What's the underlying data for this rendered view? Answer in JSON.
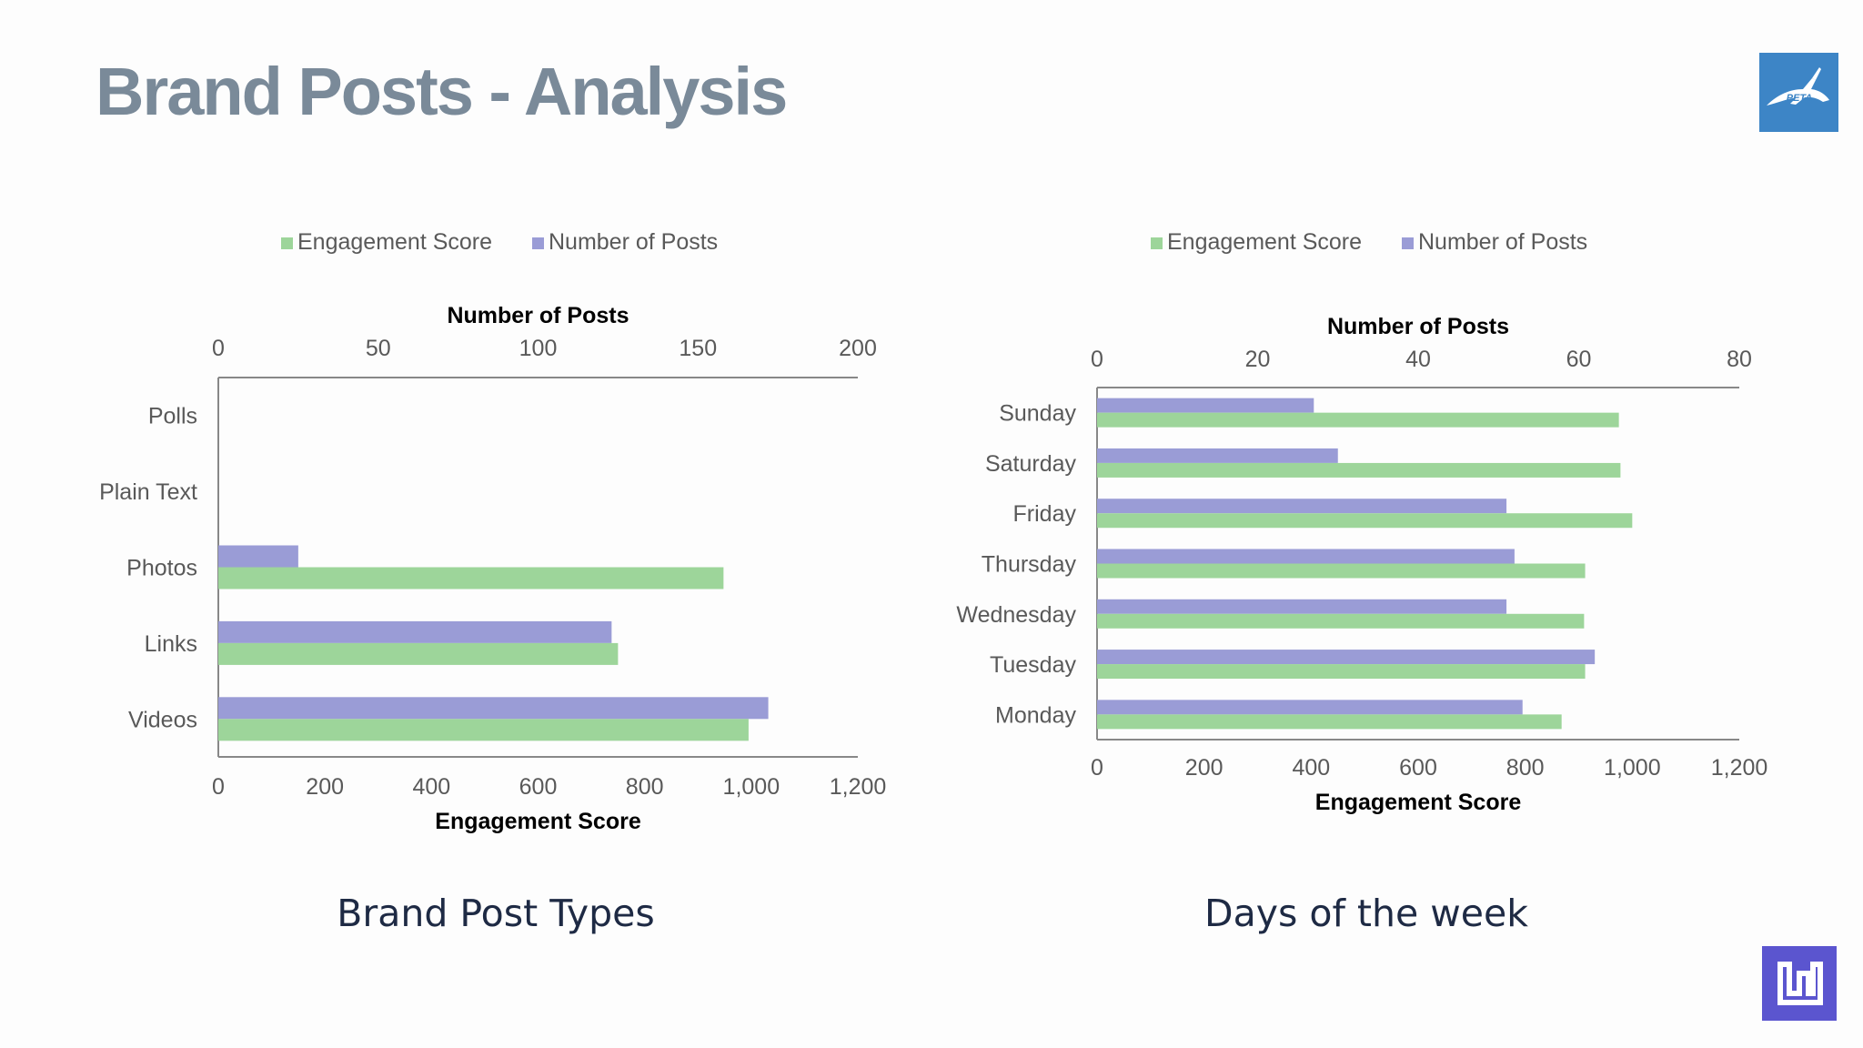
{
  "slide": {
    "title": "Brand Posts - Analysis"
  },
  "logos": {
    "top_right": {
      "icon": "peta-rabbit-logo-icon",
      "text": "PETA",
      "color": "#3d85c6"
    },
    "bottom_right": {
      "icon": "brand-logo-icon",
      "color": "#5b55cf"
    }
  },
  "colors": {
    "engagement": "#9dd59a",
    "posts": "#9a9cd6",
    "axis": "#888888",
    "tick_text": "#595959",
    "label_text": "#000000"
  },
  "chart_data": [
    {
      "type": "bar",
      "orientation": "horizontal",
      "caption": "Brand Post Types",
      "legend": [
        "Engagement Score",
        "Number of Posts"
      ],
      "legend_position": "top",
      "categories": [
        "Polls",
        "Plain Text",
        "Photos",
        "Links",
        "Videos"
      ],
      "series": [
        {
          "name": "Number of Posts",
          "axis": "top",
          "values": [
            0,
            0,
            25,
            123,
            172
          ]
        },
        {
          "name": "Engagement Score",
          "axis": "bottom",
          "values": [
            0,
            0,
            948,
            750,
            995
          ]
        }
      ],
      "top_axis": {
        "label": "Number of Posts",
        "min": 0,
        "max": 200,
        "ticks": [
          "0",
          "50",
          "100",
          "150",
          "200"
        ]
      },
      "bottom_axis": {
        "label": "Engagement Score",
        "min": 0,
        "max": 1200,
        "ticks": [
          "0",
          "200",
          "400",
          "600",
          "800",
          "1,000",
          "1,200"
        ]
      },
      "grid": false
    },
    {
      "type": "bar",
      "orientation": "horizontal",
      "caption": "Days of the week",
      "legend": [
        "Engagement Score",
        "Number of Posts"
      ],
      "legend_position": "top",
      "categories": [
        "Sunday",
        "Saturday",
        "Friday",
        "Thursday",
        "Wednesday",
        "Tuesday",
        "Monday"
      ],
      "series": [
        {
          "name": "Number of Posts",
          "axis": "top",
          "values": [
            27,
            30,
            51,
            52,
            51,
            62,
            53
          ]
        },
        {
          "name": "Engagement Score",
          "axis": "bottom",
          "values": [
            975,
            978,
            1000,
            912,
            910,
            912,
            868
          ]
        }
      ],
      "top_axis": {
        "label": "Number of Posts",
        "min": 0,
        "max": 80,
        "ticks": [
          "0",
          "20",
          "40",
          "60",
          "80"
        ]
      },
      "bottom_axis": {
        "label": "Engagement Score",
        "min": 0,
        "max": 1200,
        "ticks": [
          "0",
          "200",
          "400",
          "600",
          "800",
          "1,000",
          "1,200"
        ]
      },
      "grid": false
    }
  ]
}
